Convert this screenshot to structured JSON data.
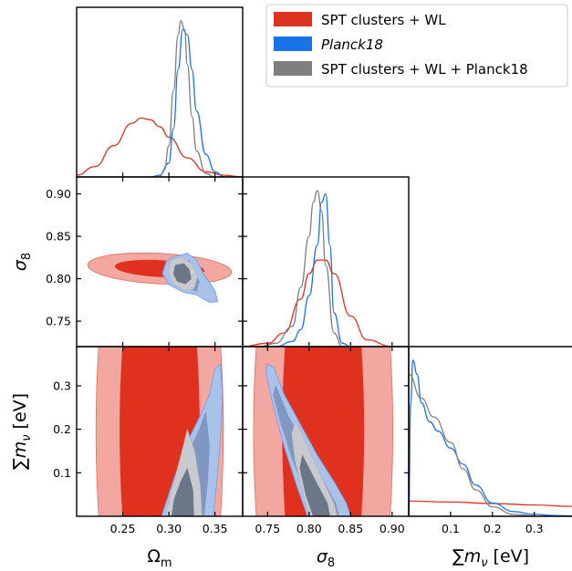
{
  "chart_data": {
    "type": "triangle-corner",
    "parameters": [
      {
        "id": "om",
        "label": "Ωm",
        "label_main": "Ω",
        "label_sub": "m",
        "range": [
          0.2,
          0.38
        ],
        "ticks": [
          0.25,
          0.3,
          0.35
        ],
        "tick_labels": [
          "0.25",
          "0.30",
          "0.35"
        ]
      },
      {
        "id": "s8",
        "label": "σ8",
        "label_main": "σ",
        "label_sub": "8",
        "range": [
          0.72,
          0.92
        ],
        "ticks": [
          0.75,
          0.8,
          0.85,
          0.9
        ],
        "tick_labels": [
          "0.75",
          "0.80",
          "0.85",
          "0.90"
        ]
      },
      {
        "id": "mnu",
        "label": "∑mν [eV]",
        "label_main": "∑m",
        "label_sub": "ν",
        "label_unit": " [eV]",
        "range": [
          0.0,
          0.39
        ],
        "ticks": [
          0.1,
          0.2,
          0.3
        ],
        "tick_labels": [
          "0.1",
          "0.2",
          "0.3"
        ]
      }
    ],
    "legend": {
      "placement": "top-right",
      "entries": [
        {
          "label": "SPT clusters + WL",
          "color": "#dc3220"
        },
        {
          "label": "Planck18",
          "color": "#1a73e8"
        },
        {
          "label": "SPT clusters + WL + Planck18",
          "color": "#7f7f7f"
        }
      ]
    },
    "series": [
      {
        "name": "SPT clusters + WL",
        "color": "#dc3220",
        "fill_68": "#e0301e",
        "fill_95": "#f2a7a0",
        "om_marginal": {
          "x": [
            0.2,
            0.22,
            0.24,
            0.26,
            0.27,
            0.28,
            0.29,
            0.3,
            0.32,
            0.34,
            0.36,
            0.38
          ],
          "p": [
            0.01,
            0.06,
            0.18,
            0.31,
            0.34,
            0.33,
            0.29,
            0.23,
            0.11,
            0.03,
            0.01,
            0.0
          ]
        },
        "s8_marginal": {
          "x": [
            0.72,
            0.75,
            0.77,
            0.79,
            0.8,
            0.81,
            0.82,
            0.83,
            0.85,
            0.87,
            0.9,
            0.92
          ],
          "p": [
            0.0,
            0.02,
            0.08,
            0.28,
            0.43,
            0.51,
            0.51,
            0.43,
            0.18,
            0.04,
            0.0,
            0.0
          ]
        },
        "mnu_marginal": {
          "x": [
            0.0,
            0.1,
            0.2,
            0.3,
            0.39
          ],
          "p": [
            0.16,
            0.15,
            0.135,
            0.12,
            0.105
          ]
        },
        "ellipse_om_s8": {
          "center": [
            0.29,
            0.812
          ],
          "semi_axes_68": [
            0.048,
            0.0095
          ],
          "semi_axes_95": [
            0.078,
            0.018
          ],
          "angle_deg": -24
        },
        "band_om_mnu": {
          "center": 0.29,
          "half_width_68": 0.044,
          "half_width_95": 0.07
        },
        "band_s8_mnu": {
          "center": 0.817,
          "half_width_68": 0.05,
          "half_width_95": 0.085
        }
      },
      {
        "name": "Planck18",
        "color": "#1a73e8",
        "fill_68": "#7f97c2",
        "fill_95": "#a9c2ea",
        "om_marginal": {
          "x": [
            0.28,
            0.29,
            0.3,
            0.305,
            0.31,
            0.315,
            0.32,
            0.325,
            0.33,
            0.34,
            0.35,
            0.36
          ],
          "p": [
            0.0,
            0.01,
            0.08,
            0.28,
            0.62,
            0.85,
            0.82,
            0.62,
            0.38,
            0.13,
            0.03,
            0.0
          ]
        },
        "s8_marginal": {
          "x": [
            0.76,
            0.78,
            0.79,
            0.8,
            0.81,
            0.815,
            0.82,
            0.825,
            0.83,
            0.84,
            0.85
          ],
          "p": [
            0.0,
            0.03,
            0.1,
            0.3,
            0.6,
            0.85,
            0.9,
            0.6,
            0.2,
            0.02,
            0.0
          ]
        },
        "mnu_marginal": {
          "x": [
            0.0,
            0.005,
            0.01,
            0.02,
            0.03,
            0.05,
            0.07,
            0.1,
            0.13,
            0.16,
            0.2,
            0.25,
            0.3,
            0.35,
            0.39
          ],
          "p": [
            0.0,
            1.2,
            1.65,
            1.5,
            1.2,
            1.0,
            0.9,
            0.72,
            0.55,
            0.33,
            0.14,
            0.05,
            0.02,
            0.008,
            0.004
          ]
        }
      },
      {
        "name": "SPT clusters + WL + Planck18",
        "color": "#7f7f7f",
        "fill_68": "#6b7686",
        "fill_95": "#c8cacf",
        "om_marginal": {
          "x": [
            0.29,
            0.295,
            0.3,
            0.305,
            0.31,
            0.313,
            0.317,
            0.32,
            0.325,
            0.33,
            0.34,
            0.35
          ],
          "p": [
            0.0,
            0.04,
            0.18,
            0.5,
            0.82,
            0.9,
            0.85,
            0.65,
            0.35,
            0.15,
            0.02,
            0.0
          ]
        },
        "s8_marginal": {
          "x": [
            0.74,
            0.76,
            0.78,
            0.79,
            0.8,
            0.805,
            0.81,
            0.815,
            0.82,
            0.83,
            0.84
          ],
          "p": [
            0.0,
            0.02,
            0.12,
            0.35,
            0.65,
            0.85,
            0.92,
            0.8,
            0.48,
            0.08,
            0.0
          ]
        },
        "mnu_marginal": {
          "x": [
            0.0,
            0.03,
            0.06,
            0.1,
            0.13,
            0.16,
            0.2,
            0.25,
            0.3
          ],
          "p": [
            1.5,
            1.25,
            1.05,
            0.78,
            0.5,
            0.28,
            0.1,
            0.02,
            0.005
          ]
        }
      }
    ],
    "grid": false
  }
}
